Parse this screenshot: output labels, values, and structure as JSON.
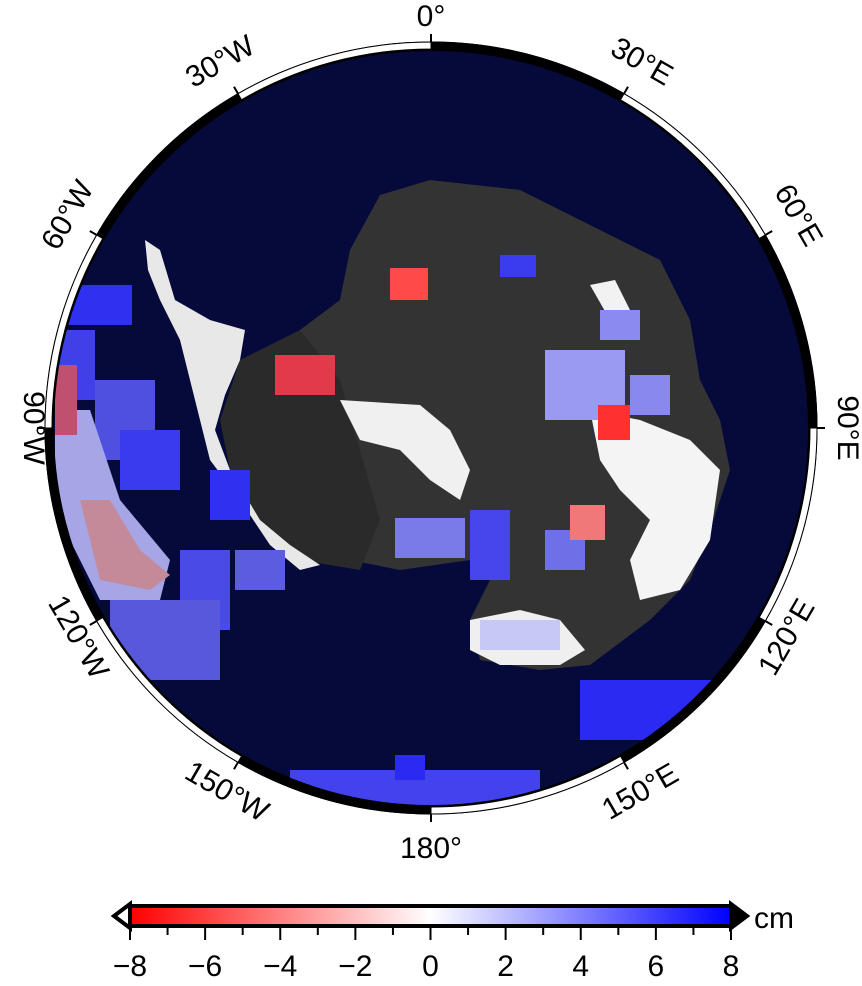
{
  "map": {
    "projection": "south-polar-stereographic",
    "background_ocean_color": "#050a3a",
    "land_color_range": [
      "#2b2b2b",
      "#f2f2f2"
    ],
    "longitude_labels": {
      "lon_0": "0°",
      "lon_30e": "30°E",
      "lon_60e": "60°E",
      "lon_90e": "90°E",
      "lon_120e": "120°E",
      "lon_150e": "150°E",
      "lon_180": "180°",
      "lon_150w": "150°W",
      "lon_120w": "120°W",
      "lon_90w": "90°W",
      "lon_60w": "60°W",
      "lon_30w": "30°W"
    }
  },
  "colorbar": {
    "unit": "cm",
    "min": -8,
    "max": 8,
    "colors": [
      "#ff0000",
      "#ffffff",
      "#0000ff"
    ],
    "tick_labels": [
      "−8",
      "−6",
      "−4",
      "−2",
      "0",
      "2",
      "4",
      "6",
      "8"
    ]
  }
}
